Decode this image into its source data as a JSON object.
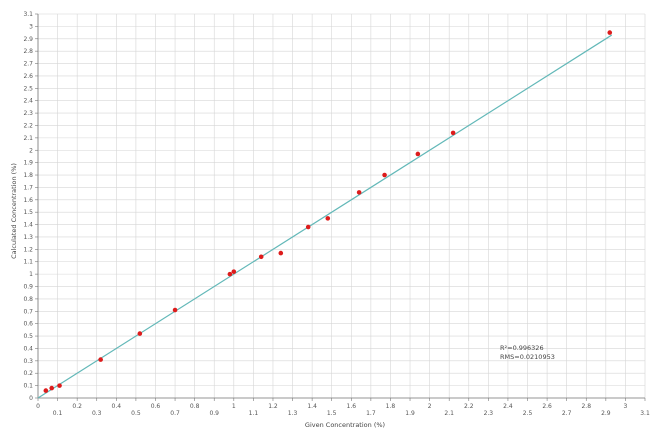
{
  "chart_data": {
    "type": "scatter",
    "title": "",
    "xlabel": "Given Concentration (%)",
    "ylabel": "Calculated Concentration (%)",
    "xlim": [
      0,
      3.1
    ],
    "ylim": [
      0,
      3.1
    ],
    "x_ticks": [
      0,
      0.1,
      0.2,
      0.3,
      0.4,
      0.5,
      0.6,
      0.7,
      0.8,
      0.9,
      1,
      1.1,
      1.2,
      1.3,
      1.4,
      1.5,
      1.6,
      1.7,
      1.8,
      1.9,
      2,
      2.1,
      2.2,
      2.3,
      2.4,
      2.5,
      2.6,
      2.7,
      2.8,
      2.9,
      3,
      3.1
    ],
    "x_tick_labels": [
      "0",
      "0.1",
      "0.2",
      "0.3",
      "0.4",
      "0.5",
      "0.6",
      "0.7",
      "0.8",
      "0.9",
      "1",
      "1.1",
      "1.2",
      "1.3",
      "1.4",
      "1.5",
      "1.6",
      "1.7",
      "1.8",
      "1.9",
      "2",
      "2.1",
      "2.2",
      "2.3",
      "2.4",
      "2.5",
      "2.6",
      "2.7",
      "2.8",
      "2.9",
      "3",
      "3.1"
    ],
    "y_ticks": [
      0,
      0.1,
      0.2,
      0.3,
      0.4,
      0.5,
      0.6,
      0.7,
      0.8,
      0.9,
      1,
      1.1,
      1.2,
      1.3,
      1.4,
      1.5,
      1.6,
      1.7,
      1.8,
      1.9,
      2,
      2.1,
      2.2,
      2.3,
      2.4,
      2.5,
      2.6,
      2.7,
      2.8,
      2.9,
      3,
      3.1
    ],
    "y_tick_labels": [
      "0",
      "0.1",
      "0.2",
      "0.3",
      "0.4",
      "0.5",
      "0.6",
      "0.7",
      "0.8",
      "0.9",
      "1",
      "1.1",
      "1.2",
      "1.3",
      "1.4",
      "1.5",
      "1.6",
      "1.7",
      "1.8",
      "1.9",
      "2",
      "2.1",
      "2.2",
      "2.3",
      "2.4",
      "2.5",
      "2.6",
      "2.7",
      "2.8",
      "2.9",
      "3",
      "3.1"
    ],
    "grid": true,
    "points": [
      {
        "x": 0.04,
        "y": 0.06
      },
      {
        "x": 0.07,
        "y": 0.08
      },
      {
        "x": 0.11,
        "y": 0.1
      },
      {
        "x": 0.32,
        "y": 0.31
      },
      {
        "x": 0.52,
        "y": 0.52
      },
      {
        "x": 0.7,
        "y": 0.71
      },
      {
        "x": 0.98,
        "y": 1.0
      },
      {
        "x": 1.0,
        "y": 1.02
      },
      {
        "x": 1.14,
        "y": 1.14
      },
      {
        "x": 1.24,
        "y": 1.17
      },
      {
        "x": 1.38,
        "y": 1.38
      },
      {
        "x": 1.48,
        "y": 1.45
      },
      {
        "x": 1.64,
        "y": 1.66
      },
      {
        "x": 1.77,
        "y": 1.8
      },
      {
        "x": 1.94,
        "y": 1.97
      },
      {
        "x": 2.12,
        "y": 2.14
      },
      {
        "x": 2.92,
        "y": 2.95
      }
    ],
    "fit_line": {
      "x": [
        0,
        2.93
      ],
      "y": [
        0,
        2.93
      ]
    },
    "annotations": [
      "R²=0.996326",
      "RMS=0.0210953"
    ],
    "colors": {
      "points": "#dd1c1c",
      "fit_line": "#62b8b8",
      "grid": "#d6d6d6",
      "axis": "#777777"
    }
  }
}
